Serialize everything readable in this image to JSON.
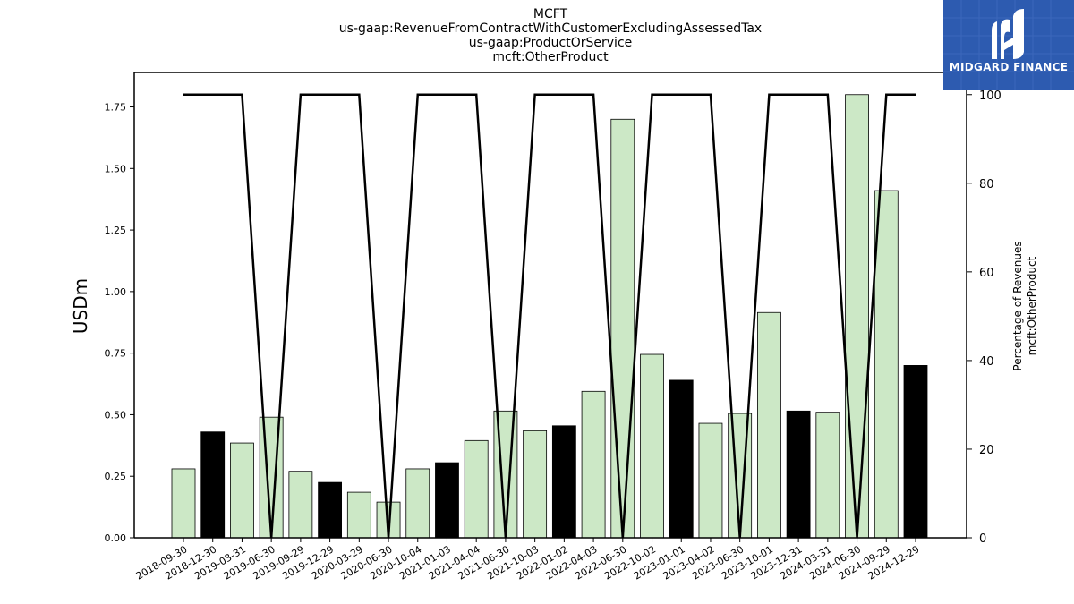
{
  "chart_data": {
    "type": "bar",
    "title_lines": [
      "MCFT",
      "us-gaap:RevenueFromContractWithCustomerExcludingAssessedTax",
      "us-gaap:ProductOrService",
      "mcft:OtherProduct"
    ],
    "ylabel": "USDm",
    "ylabel_right": [
      "Percentage of Revenues",
      "mcft:OtherProduct"
    ],
    "ylim": [
      0,
      1.89
    ],
    "yticks": [
      "0.00",
      "0.25",
      "0.50",
      "0.75",
      "1.00",
      "1.25",
      "1.50",
      "1.75"
    ],
    "ylim_right": [
      0,
      105
    ],
    "yticks_right": [
      "0",
      "20",
      "40",
      "60",
      "80",
      "100"
    ],
    "categories": [
      "2018-09-30",
      "2018-12-30",
      "2019-03-31",
      "2019-06-30",
      "2019-09-29",
      "2019-12-29",
      "2020-03-29",
      "2020-06-30",
      "2020-10-04",
      "2021-01-03",
      "2021-04-04",
      "2021-06-30",
      "2021-10-03",
      "2022-01-02",
      "2022-04-03",
      "2022-06-30",
      "2022-10-02",
      "2023-01-01",
      "2023-04-02",
      "2023-06-30",
      "2023-10-01",
      "2023-12-31",
      "2024-03-31",
      "2024-06-30",
      "2024-09-29",
      "2024-12-29"
    ],
    "values": [
      0.28,
      0.43,
      0.385,
      0.49,
      0.27,
      0.225,
      0.185,
      0.145,
      0.28,
      0.305,
      0.395,
      0.515,
      0.435,
      0.455,
      0.595,
      1.7,
      0.745,
      0.64,
      0.465,
      0.505,
      0.915,
      0.515,
      0.51,
      1.8,
      1.41,
      0.7
    ],
    "bar_fills": [
      "green",
      "black",
      "green",
      "green",
      "green",
      "black",
      "green",
      "green",
      "green",
      "black",
      "green",
      "green",
      "green",
      "black",
      "green",
      "green",
      "green",
      "black",
      "green",
      "green",
      "green",
      "black",
      "green",
      "green",
      "green",
      "black"
    ],
    "line_series": {
      "values": [
        100,
        100,
        100,
        0,
        100,
        100,
        100,
        0,
        100,
        100,
        100,
        0,
        100,
        100,
        100,
        0,
        100,
        100,
        100,
        0,
        100,
        100,
        100,
        0,
        100,
        100
      ]
    },
    "colors": {
      "green_bar": "#cce8c6",
      "black_bar": "#000000",
      "line": "#000000"
    }
  },
  "logo": {
    "text": "MIDGARD FINANCE",
    "background": "#2d5bb0"
  }
}
